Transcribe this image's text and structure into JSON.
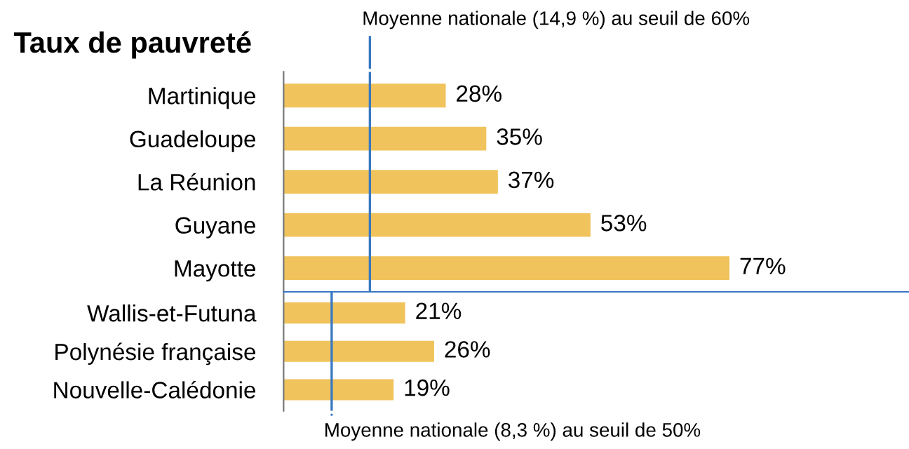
{
  "chart_data": [
    {
      "type": "bar",
      "orientation": "horizontal",
      "title": "Taux de pauvreté",
      "categories": [
        "Martinique",
        "Guadeloupe",
        "La Réunion",
        "Guyane",
        "Mayotte"
      ],
      "values": [
        28,
        35,
        37,
        53,
        77
      ],
      "color": "#f0c35c",
      "value_labels": [
        "28%",
        "35%",
        "37%",
        "53%",
        "77%"
      ],
      "xlim": [
        0,
        108
      ],
      "ref_lines": [
        {
          "axis": "x",
          "value": 14.9,
          "label": "Moyenne nationale (14,9 %) au seuil de 60%",
          "color": "#3a78c2"
        }
      ]
    },
    {
      "type": "bar",
      "orientation": "horizontal",
      "categories": [
        "Wallis-et-Futuna",
        "Polynésie française",
        "Nouvelle-Calédonie"
      ],
      "values": [
        21,
        26,
        19
      ],
      "color": "#f0c35c",
      "value_labels": [
        "21%",
        "26%",
        "19%"
      ],
      "xlim": [
        0,
        108
      ],
      "ref_lines": [
        {
          "axis": "x",
          "value": 8.3,
          "label": "Moyenne nationale (8,3 %) au seuil de 50%",
          "color": "#3a78c2"
        }
      ]
    }
  ]
}
